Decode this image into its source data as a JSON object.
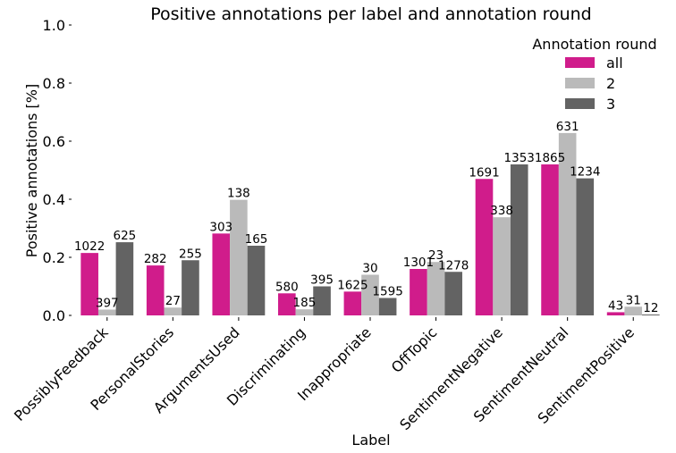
{
  "chart_data": {
    "type": "bar",
    "title": "Positive annotations per label and annotation round",
    "xlabel": "Label",
    "ylabel": "Positive annotations [%]",
    "ylim": [
      0,
      1.0
    ],
    "yticks": [
      "0.0",
      "0.2",
      "0.4",
      "0.6",
      "0.8",
      "1.0"
    ],
    "grid": false,
    "legend_placement": "top-right",
    "legend_title": "Annotation round",
    "categories": [
      "PossiblyFeedback",
      "PersonalStories",
      "ArgumentsUsed",
      "Discriminating",
      "Inappropriate",
      "OffTopic",
      "SentimentNegative",
      "SentimentNeutral",
      "SentimentPositive"
    ],
    "series": [
      {
        "name": "all",
        "color": "#d01c8b",
        "values": [
          0.215,
          0.172,
          0.282,
          0.076,
          0.082,
          0.16,
          0.47,
          0.52,
          0.011
        ],
        "labels": [
          "1022",
          "282",
          "303",
          "580",
          "1625",
          "1301",
          "1691",
          "1865",
          "43"
        ]
      },
      {
        "name": "2",
        "color": "#bababa",
        "values": [
          0.02,
          0.027,
          0.398,
          0.021,
          0.14,
          0.184,
          0.338,
          0.628,
          0.03
        ],
        "labels": [
          "397",
          "27",
          "138",
          "185",
          "30",
          "23",
          "338",
          "631",
          "31"
        ]
      },
      {
        "name": "3",
        "color": "#636363",
        "values": [
          0.252,
          0.19,
          0.24,
          0.1,
          0.06,
          0.15,
          0.52,
          0.472,
          0.003
        ],
        "labels": [
          "625",
          "255",
          "165",
          "395",
          "1595",
          "1278",
          "1353",
          "1234",
          "12"
        ]
      }
    ]
  }
}
